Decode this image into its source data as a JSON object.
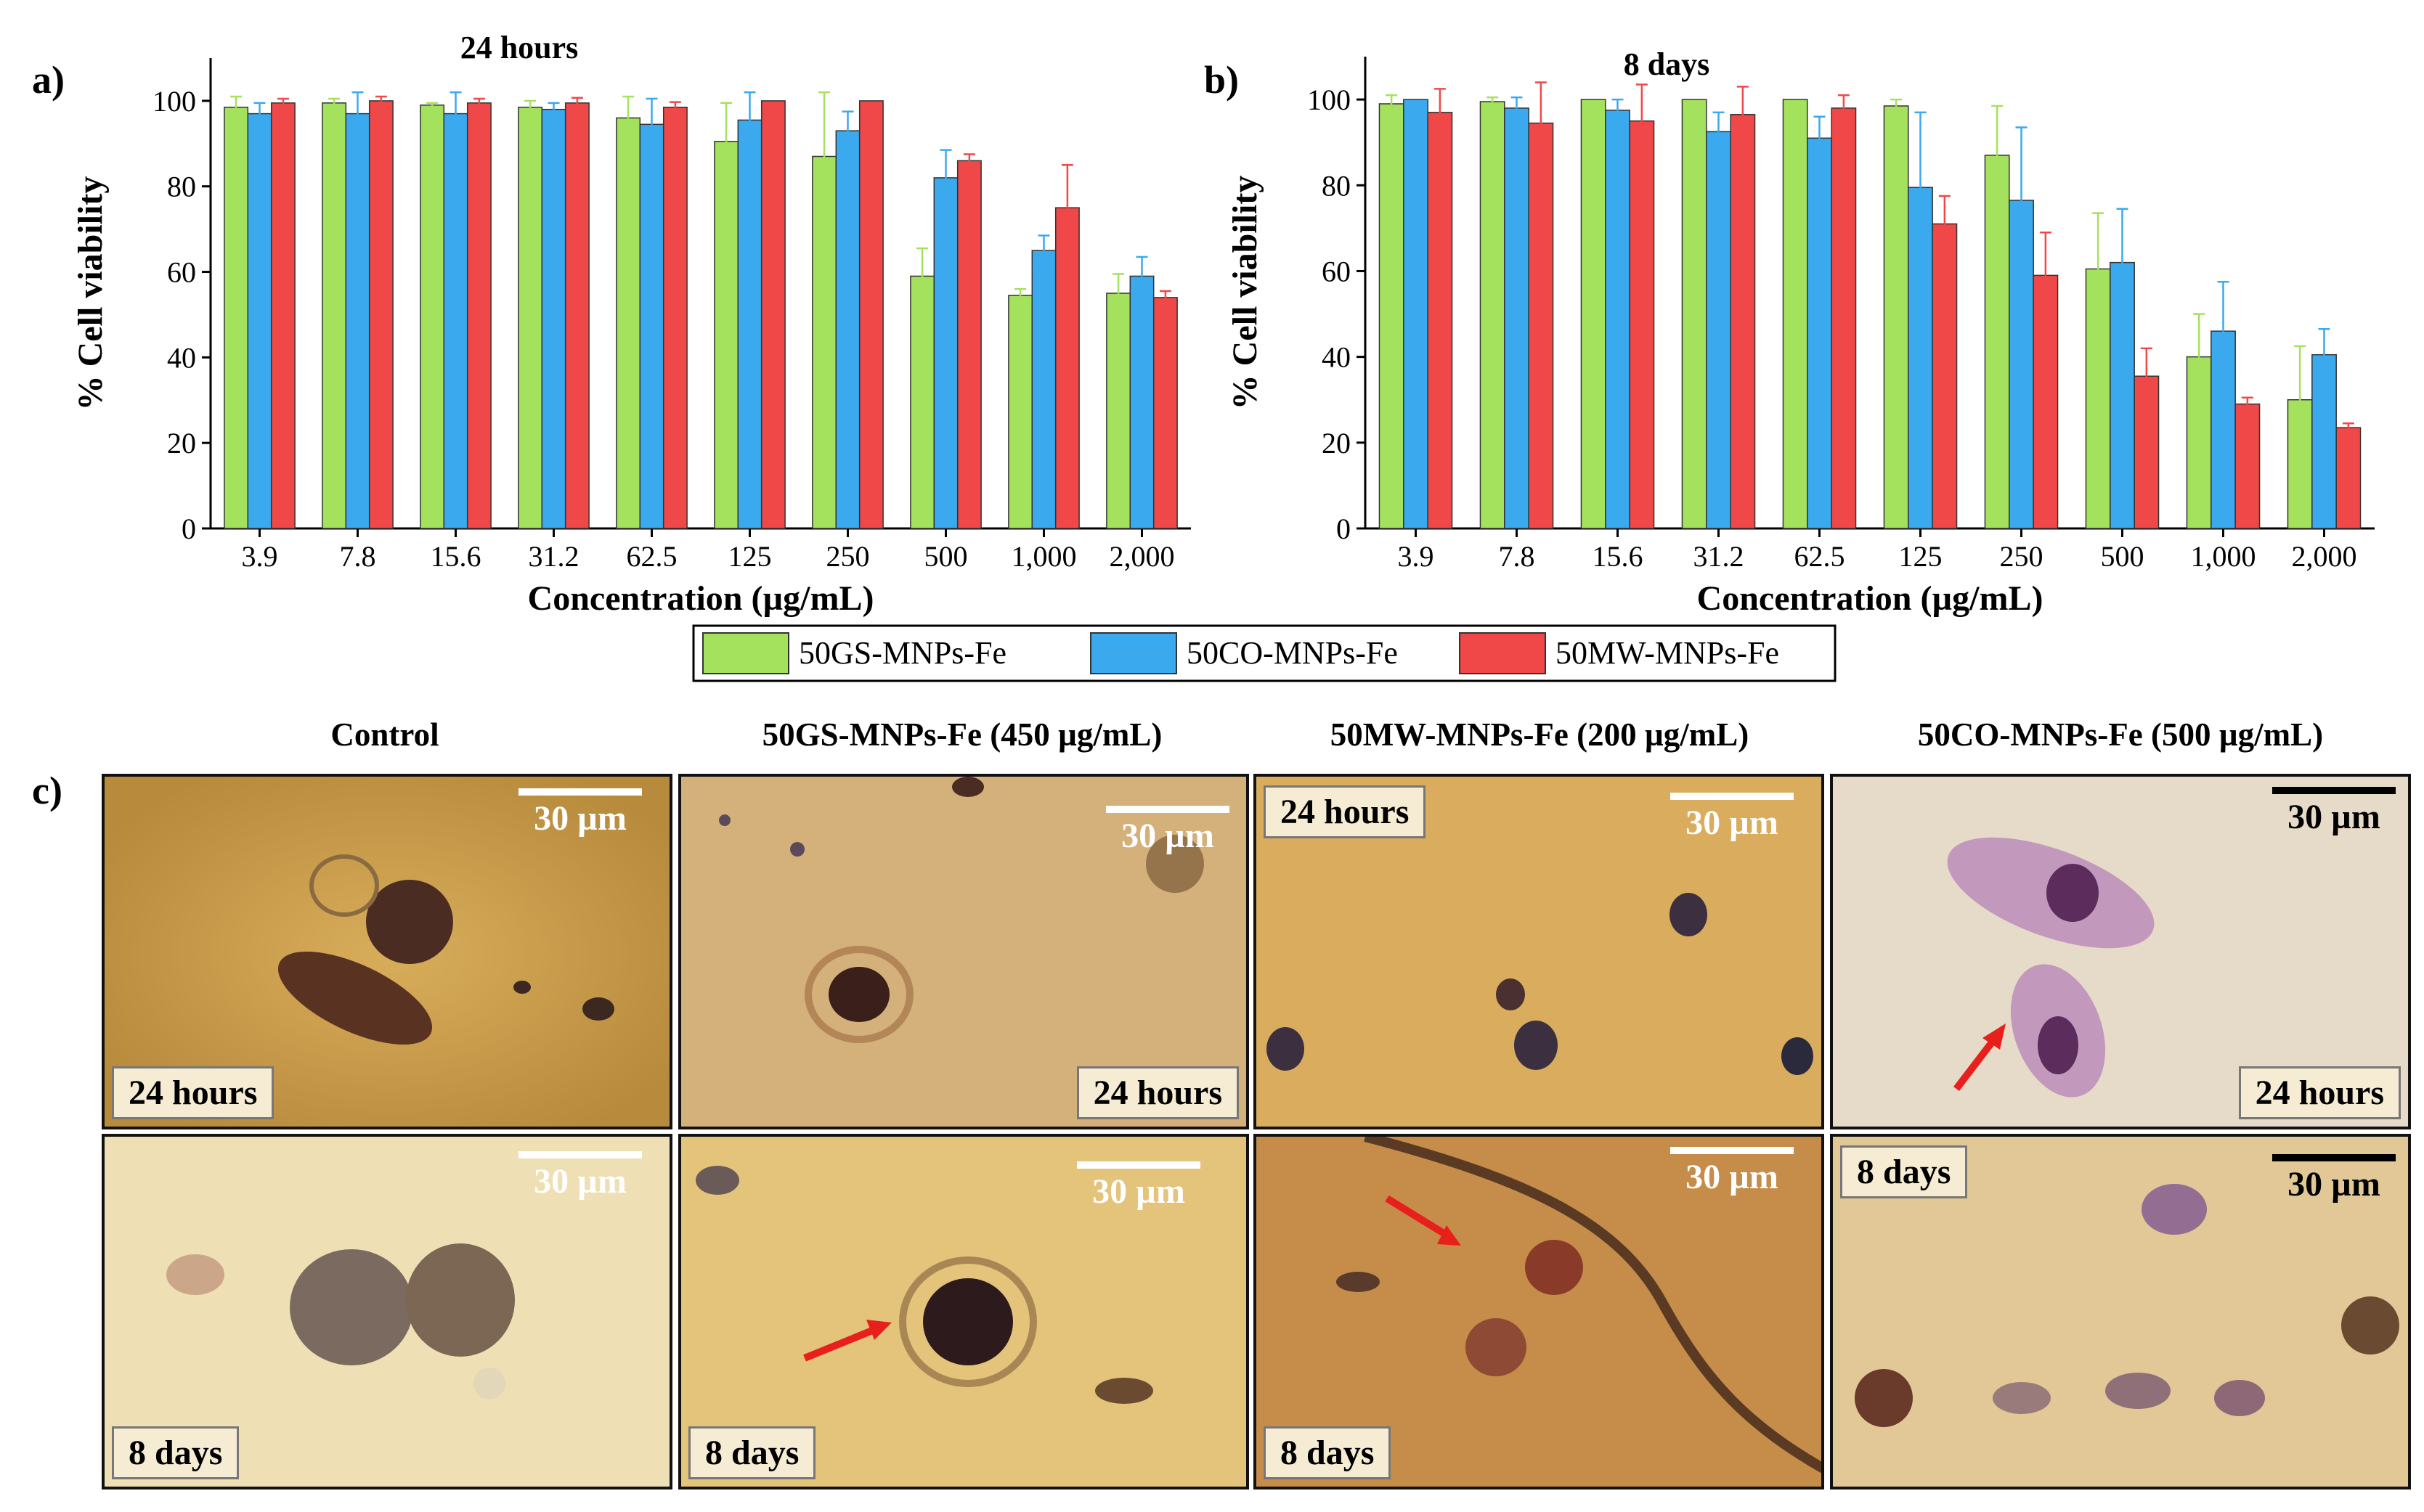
{
  "chart_data": [
    {
      "type": "bar",
      "panel_label": "a)",
      "title": "24 hours",
      "xlabel": "Concentration (µg/mL)",
      "ylabel": "% Cell viability",
      "ylim": [
        0,
        110
      ],
      "yticks": [
        0,
        20,
        40,
        60,
        80,
        100
      ],
      "grid": false,
      "categories": [
        "3.9",
        "7.8",
        "15.6",
        "31.2",
        "62.5",
        "125",
        "250",
        "500",
        "1,000",
        "2,000"
      ],
      "series": [
        {
          "name": "50GS-MNPs-Fe",
          "color": "#a4e15c",
          "values": [
            98.5,
            99.5,
            99,
            98.5,
            96,
            90.5,
            87,
            59,
            54.5,
            55
          ],
          "errors": [
            2.5,
            1,
            0.5,
            1.5,
            5,
            9,
            15,
            6.5,
            1.5,
            4.5
          ]
        },
        {
          "name": "50CO-MNPs-Fe",
          "color": "#3aa9ee",
          "values": [
            97,
            97,
            97,
            98,
            94.5,
            95.5,
            93,
            82,
            65,
            59
          ],
          "errors": [
            2.5,
            5,
            5,
            1.5,
            6,
            6.5,
            4.5,
            6.5,
            3.5,
            4.5
          ]
        },
        {
          "name": "50MW-MNPs-Fe",
          "color": "#f04848",
          "values": [
            99.5,
            100,
            99.5,
            99.5,
            98.5,
            100,
            100,
            86,
            75,
            54
          ],
          "errors": [
            1,
            1,
            1,
            1.2,
            1.2,
            0,
            0,
            1.5,
            10,
            1.5
          ]
        }
      ]
    },
    {
      "type": "bar",
      "panel_label": "b)",
      "title": "8 days",
      "xlabel": "Concentration (µg/mL)",
      "ylabel": "% Cell viability",
      "ylim": [
        0,
        110
      ],
      "yticks": [
        0,
        20,
        40,
        60,
        80,
        100
      ],
      "grid": false,
      "categories": [
        "3.9",
        "7.8",
        "15.6",
        "31.2",
        "62.5",
        "125",
        "250",
        "500",
        "1,000",
        "2,000"
      ],
      "series": [
        {
          "name": "50GS-MNPs-Fe",
          "color": "#a4e15c",
          "values": [
            99,
            99.5,
            100,
            100,
            100,
            98.5,
            87,
            60.5,
            40,
            30
          ],
          "errors": [
            2,
            1,
            0,
            0,
            0,
            1.5,
            11.5,
            13,
            10,
            12.5
          ]
        },
        {
          "name": "50CO-MNPs-Fe",
          "color": "#3aa9ee",
          "values": [
            100,
            98,
            97.5,
            92.5,
            91,
            79.5,
            76.5,
            62,
            46,
            40.5
          ],
          "errors": [
            0,
            2.5,
            2.5,
            4.5,
            5,
            17.5,
            17,
            12.5,
            11.5,
            6
          ]
        },
        {
          "name": "50MW-MNPs-Fe",
          "color": "#f04848",
          "values": [
            97,
            94.5,
            95,
            96.5,
            98,
            71,
            59,
            35.5,
            29,
            23.5
          ],
          "errors": [
            5.5,
            9.5,
            8.5,
            6.5,
            3,
            6.5,
            10,
            6.5,
            1.5,
            1
          ]
        }
      ]
    }
  ],
  "legend": {
    "placement": "bottom-center",
    "entries": [
      "50GS-MNPs-Fe",
      "50CO-MNPs-Fe",
      "50MW-MNPs-Fe"
    ]
  },
  "micrographs": {
    "panel_label": "c)",
    "columns": [
      {
        "title": "Control",
        "top_tag": "24 hours",
        "bottom_tag": "8 days",
        "top_scale": "30  µm",
        "bottom_scale": "30  µm"
      },
      {
        "title": "50GS-MNPs-Fe (450 µg/mL)",
        "top_tag": "24 hours",
        "bottom_tag": "8 days",
        "top_scale": "30  µm",
        "bottom_scale": "30  µm"
      },
      {
        "title": "50MW-MNPs-Fe (200 µg/mL)",
        "top_tag": "24 hours",
        "bottom_tag": "8 days",
        "top_scale": "30  µm",
        "bottom_scale": "30  µm"
      },
      {
        "title": "50CO-MNPs-Fe (500 µg/mL)",
        "top_tag": "24 hours",
        "bottom_tag": "8 days",
        "top_scale": "30  µm",
        "bottom_scale": "30  µm"
      }
    ],
    "arrow_color": "#e8201c"
  }
}
